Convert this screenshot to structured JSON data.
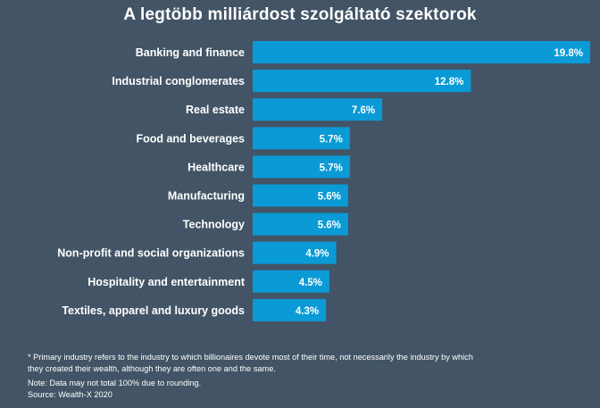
{
  "chart_data": {
    "type": "bar",
    "orientation": "horizontal",
    "title": "A legtöbb milliárdost szolgáltató szektorok",
    "categories": [
      "Banking and finance",
      "Industrial conglomerates",
      "Real estate",
      "Food and beverages",
      "Healthcare",
      "Manufacturing",
      "Technology",
      "Non-profit and social organizations",
      "Hospitality and entertainment",
      "Textiles, apparel and luxury goods"
    ],
    "values": [
      19.8,
      12.8,
      7.6,
      5.7,
      5.7,
      5.6,
      5.6,
      4.9,
      4.5,
      4.3
    ],
    "value_labels": [
      "19.8%",
      "12.8%",
      "7.6%",
      "5.7%",
      "5.7%",
      "5.6%",
      "5.6%",
      "4.9%",
      "4.5%",
      "4.3%"
    ],
    "unit": "%",
    "xlim": [
      0,
      19.8
    ],
    "grid": false,
    "legend": "none",
    "bar_color": "#0a9ad6",
    "background_color": "#425466"
  },
  "footnotes": {
    "primary_line1": "* Primary industry refers to the industry to which billionaires devote most of their time, not necessarily the industry by which",
    "primary_line2": "they created their wealth, although they are often one and the same.",
    "note": "Note: Data may not total 100% due to rounding.",
    "source": "Source: Wealth-X 2020"
  }
}
